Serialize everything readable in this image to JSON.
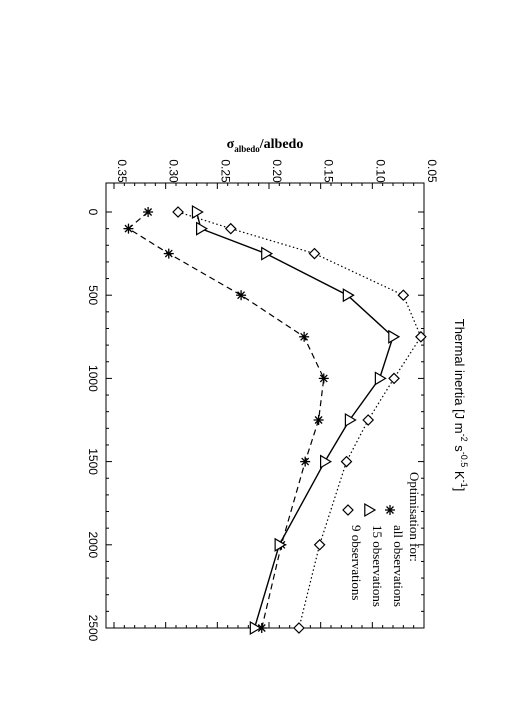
{
  "chart_data": {
    "type": "line",
    "orientation_note": "rotated 90 degrees clockwise",
    "xlabel": "Thermal inertia [J m^-2 s^-0.5 K^-1]",
    "ylabel": "σ_albedo/albedo",
    "xlim": [
      0,
      2500
    ],
    "ylim": [
      0.05,
      0.35
    ],
    "x_ticks": [
      "0",
      "500",
      "1000",
      "1500",
      "2000",
      "2500"
    ],
    "y_ticks": [
      "0.05",
      "0.10",
      "0.15",
      "0.20",
      "0.25",
      "0.30",
      "0.35"
    ],
    "grid": false,
    "legend_placement": "top-right",
    "legend_title": "Optimisation for:",
    "series": [
      {
        "name": "all observations",
        "marker": "asterisk",
        "line": "dashed",
        "x": [
          0,
          100,
          250,
          500,
          750,
          1000,
          1250,
          1500,
          2000,
          2500
        ],
        "y": [
          0.317,
          0.336,
          0.297,
          0.227,
          0.166,
          0.147,
          0.152,
          0.165,
          0.188,
          0.207
        ]
      },
      {
        "name": "15 observations",
        "marker": "triangle",
        "line": "solid",
        "x": [
          0,
          100,
          250,
          500,
          750,
          1000,
          1250,
          1500,
          2000,
          2500
        ],
        "y": [
          0.27,
          0.266,
          0.203,
          0.124,
          0.08,
          0.093,
          0.122,
          0.146,
          0.19,
          0.214
        ]
      },
      {
        "name": "9 observations",
        "marker": "diamond",
        "line": "dotted",
        "x": [
          0,
          100,
          250,
          500,
          750,
          1000,
          1250,
          1500,
          2000,
          2500
        ],
        "y": [
          0.288,
          0.237,
          0.156,
          0.07,
          0.053,
          0.079,
          0.104,
          0.125,
          0.151,
          0.171
        ]
      }
    ]
  }
}
